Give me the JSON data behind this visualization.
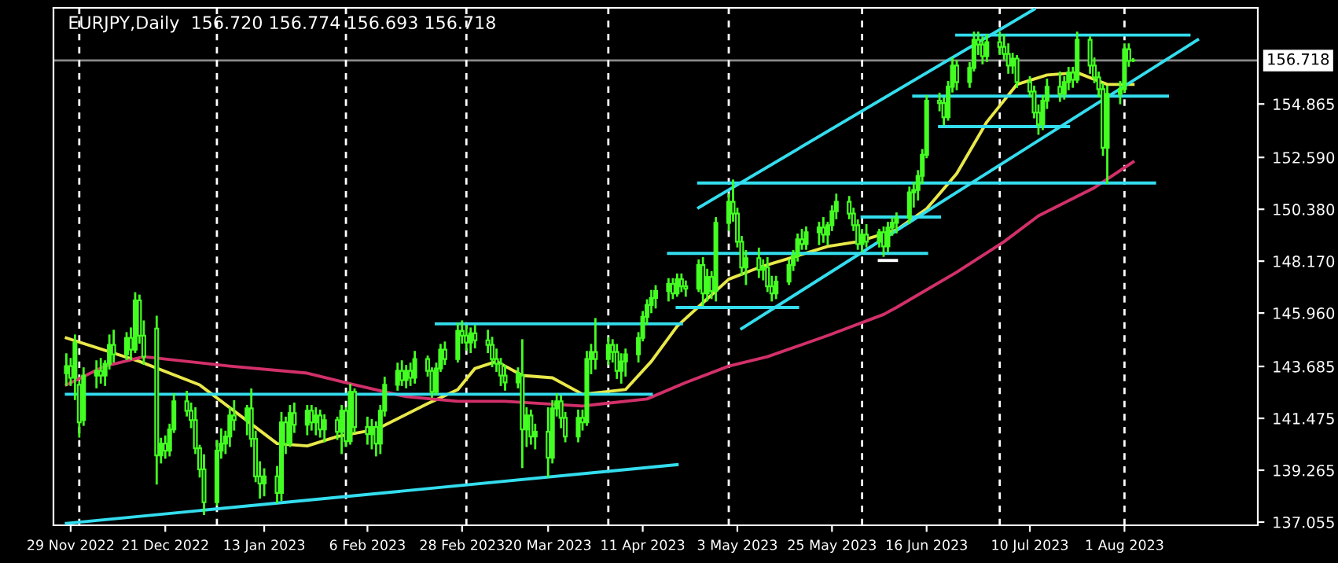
{
  "chart_data": {
    "type": "candlestick",
    "title": "EURJPY,Daily  156.720 156.774 156.693 156.718",
    "color": "#44ff22",
    "x": [
      "2022-11-28",
      "2022-11-29",
      "2022-11-30",
      "2022-12-01",
      "2022-12-02",
      "2022-12-05",
      "2022-12-06",
      "2022-12-07",
      "2022-12-08",
      "2022-12-09",
      "2022-12-12",
      "2022-12-13",
      "2022-12-14",
      "2022-12-15",
      "2022-12-16",
      "2022-12-19",
      "2022-12-20",
      "2022-12-21",
      "2022-12-22",
      "2022-12-23",
      "2022-12-26",
      "2022-12-27",
      "2022-12-28",
      "2022-12-29",
      "2022-12-30",
      "2023-01-02",
      "2023-01-03",
      "2023-01-04",
      "2023-01-05",
      "2023-01-06",
      "2023-01-09",
      "2023-01-10",
      "2023-01-11",
      "2023-01-12",
      "2023-01-13",
      "2023-01-16",
      "2023-01-17",
      "2023-01-18",
      "2023-01-19",
      "2023-01-20",
      "2023-01-23",
      "2023-01-24",
      "2023-01-25",
      "2023-01-26",
      "2023-01-27",
      "2023-01-30",
      "2023-01-31",
      "2023-02-01",
      "2023-02-02",
      "2023-02-03",
      "2023-02-06",
      "2023-02-07",
      "2023-02-08",
      "2023-02-09",
      "2023-02-10",
      "2023-02-13",
      "2023-02-14",
      "2023-02-15",
      "2023-02-16",
      "2023-02-17",
      "2023-02-20",
      "2023-02-21",
      "2023-02-22",
      "2023-02-23",
      "2023-02-24",
      "2023-02-27",
      "2023-02-28",
      "2023-03-01",
      "2023-03-02",
      "2023-03-03",
      "2023-03-06",
      "2023-03-07",
      "2023-03-08",
      "2023-03-09",
      "2023-03-10",
      "2023-03-13",
      "2023-03-14",
      "2023-03-15",
      "2023-03-16",
      "2023-03-17",
      "2023-03-20",
      "2023-03-21",
      "2023-03-22",
      "2023-03-23",
      "2023-03-24",
      "2023-03-27",
      "2023-03-28",
      "2023-03-29",
      "2023-03-30",
      "2023-03-31",
      "2023-04-03",
      "2023-04-04",
      "2023-04-05",
      "2023-04-06",
      "2023-04-07",
      "2023-04-10",
      "2023-04-11",
      "2023-04-12",
      "2023-04-13",
      "2023-04-14",
      "2023-04-17",
      "2023-04-18",
      "2023-04-19",
      "2023-04-20",
      "2023-04-21",
      "2023-04-24",
      "2023-04-25",
      "2023-04-26",
      "2023-04-27",
      "2023-04-28",
      "2023-05-01",
      "2023-05-02",
      "2023-05-03",
      "2023-05-04",
      "2023-05-05",
      "2023-05-08",
      "2023-05-09",
      "2023-05-10",
      "2023-05-11",
      "2023-05-12",
      "2023-05-15",
      "2023-05-16",
      "2023-05-17",
      "2023-05-18",
      "2023-05-19",
      "2023-05-22",
      "2023-05-23",
      "2023-05-24",
      "2023-05-25",
      "2023-05-26",
      "2023-05-29",
      "2023-05-30",
      "2023-05-31",
      "2023-06-01",
      "2023-06-02",
      "2023-06-05",
      "2023-06-06",
      "2023-06-07",
      "2023-06-08",
      "2023-06-09",
      "2023-06-12",
      "2023-06-13",
      "2023-06-14",
      "2023-06-15",
      "2023-06-16",
      "2023-06-19",
      "2023-06-20",
      "2023-06-21",
      "2023-06-22",
      "2023-06-23",
      "2023-06-26",
      "2023-06-27",
      "2023-06-28",
      "2023-06-29",
      "2023-06-30",
      "2023-07-03",
      "2023-07-04",
      "2023-07-05",
      "2023-07-06",
      "2023-07-07",
      "2023-07-10",
      "2023-07-11",
      "2023-07-12",
      "2023-07-13",
      "2023-07-14",
      "2023-07-17",
      "2023-07-18",
      "2023-07-19",
      "2023-07-20",
      "2023-07-21",
      "2023-07-24",
      "2023-07-25",
      "2023-07-26",
      "2023-07-27",
      "2023-07-28",
      "2023-07-31",
      "2023-08-01",
      "2023-08-02",
      "2023-08-03"
    ],
    "ohlc": [
      [
        143.4,
        144.2,
        142.9,
        143.7
      ],
      [
        143.7,
        144.0,
        142.9,
        143.2
      ],
      [
        143.2,
        145.0,
        142.3,
        144.7
      ],
      [
        142.9,
        143.0,
        140.7,
        141.3
      ],
      [
        141.4,
        143.6,
        141.2,
        143.3
      ],
      [
        143.3,
        143.9,
        142.8,
        143.5
      ],
      [
        143.5,
        144.0,
        143.0,
        143.3
      ],
      [
        143.3,
        143.9,
        142.9,
        143.8
      ],
      [
        143.8,
        145.0,
        143.6,
        144.6
      ],
      [
        144.6,
        145.2,
        143.9,
        144.2
      ],
      [
        144.2,
        145.1,
        144.0,
        144.9
      ],
      [
        144.9,
        145.3,
        144.0,
        144.4
      ],
      [
        144.4,
        146.8,
        144.3,
        146.5
      ],
      [
        146.5,
        146.7,
        144.7,
        145.0
      ],
      [
        145.0,
        145.6,
        143.8,
        144.1
      ],
      [
        145.3,
        145.8,
        138.7,
        139.9
      ],
      [
        139.9,
        140.6,
        139.6,
        140.4
      ],
      [
        140.4,
        140.7,
        139.8,
        140.1
      ],
      [
        140.1,
        141.2,
        139.9,
        141.0
      ],
      [
        141.0,
        142.5,
        140.9,
        142.2
      ],
      [
        142.2,
        142.6,
        141.6,
        141.8
      ],
      [
        141.8,
        142.1,
        141.1,
        141.4
      ],
      [
        141.4,
        141.9,
        140.0,
        140.2
      ],
      [
        140.2,
        140.3,
        139.0,
        139.3
      ],
      [
        139.3,
        139.9,
        137.4,
        137.9
      ],
      [
        137.9,
        140.5,
        137.8,
        140.1
      ],
      [
        140.1,
        141.0,
        139.8,
        140.4
      ],
      [
        140.4,
        140.9,
        140.0,
        140.7
      ],
      [
        140.7,
        141.9,
        140.3,
        141.6
      ],
      [
        141.6,
        142.2,
        141.0,
        141.4
      ],
      [
        141.4,
        142.0,
        140.8,
        141.9
      ],
      [
        141.9,
        142.7,
        140.3,
        140.6
      ],
      [
        140.6,
        140.9,
        138.8,
        139.0
      ],
      [
        139.0,
        139.6,
        138.1,
        138.7
      ],
      [
        138.7,
        139.3,
        138.2,
        139.0
      ],
      [
        139.0,
        139.4,
        137.9,
        138.3
      ],
      [
        138.3,
        141.7,
        138.0,
        141.3
      ],
      [
        141.3,
        141.5,
        140.0,
        140.4
      ],
      [
        140.4,
        142.0,
        140.3,
        141.7
      ],
      [
        141.7,
        142.1,
        140.9,
        141.2
      ],
      [
        141.2,
        142.0,
        140.8,
        141.8
      ],
      [
        141.8,
        142.0,
        141.0,
        141.3
      ],
      [
        141.3,
        141.9,
        140.8,
        141.6
      ],
      [
        141.6,
        141.8,
        140.7,
        141.0
      ],
      [
        141.0,
        141.6,
        140.5,
        141.4
      ],
      [
        141.4,
        141.5,
        140.6,
        140.9
      ],
      [
        140.9,
        142.0,
        140.0,
        141.8
      ],
      [
        141.8,
        141.9,
        140.3,
        140.5
      ],
      [
        140.5,
        142.9,
        140.4,
        142.6
      ],
      [
        142.6,
        142.7,
        140.9,
        141.1
      ],
      [
        141.1,
        141.5,
        140.4,
        140.8
      ],
      [
        140.8,
        141.4,
        140.2,
        141.1
      ],
      [
        141.1,
        141.3,
        139.9,
        140.4
      ],
      [
        140.4,
        142.0,
        140.0,
        141.8
      ],
      [
        141.8,
        143.2,
        141.6,
        142.9
      ],
      [
        142.9,
        143.8,
        142.7,
        143.5
      ],
      [
        143.5,
        143.9,
        142.9,
        143.1
      ],
      [
        143.1,
        143.7,
        142.8,
        143.5
      ],
      [
        143.5,
        143.8,
        142.9,
        143.2
      ],
      [
        143.2,
        144.3,
        143.0,
        144.0
      ],
      [
        144.0,
        144.1,
        143.3,
        143.5
      ],
      [
        143.5,
        143.6,
        142.4,
        142.6
      ],
      [
        142.6,
        143.8,
        142.5,
        143.6
      ],
      [
        143.6,
        144.6,
        143.5,
        144.4
      ],
      [
        144.4,
        144.7,
        143.8,
        144.0
      ],
      [
        144.0,
        145.5,
        143.9,
        145.2
      ],
      [
        145.2,
        145.6,
        144.7,
        145.0
      ],
      [
        145.0,
        145.4,
        144.4,
        144.7
      ],
      [
        144.7,
        145.3,
        144.3,
        145.1
      ],
      [
        145.1,
        145.4,
        144.5,
        144.8
      ],
      [
        144.8,
        145.2,
        144.3,
        144.6
      ],
      [
        144.6,
        144.9,
        143.7,
        144.0
      ],
      [
        144.0,
        144.4,
        143.5,
        143.8
      ],
      [
        143.8,
        144.0,
        142.9,
        143.3
      ],
      [
        143.3,
        143.7,
        142.7,
        143.0
      ],
      [
        143.0,
        143.6,
        142.8,
        143.4
      ],
      [
        143.3,
        144.8,
        139.4,
        141.0
      ],
      [
        141.0,
        141.9,
        140.3,
        141.6
      ],
      [
        141.6,
        141.8,
        140.4,
        140.7
      ],
      [
        140.7,
        141.2,
        140.2,
        140.9
      ],
      [
        140.9,
        141.9,
        139.0,
        139.8
      ],
      [
        139.8,
        142.2,
        139.6,
        141.9
      ],
      [
        141.9,
        142.5,
        141.6,
        142.2
      ],
      [
        142.2,
        142.4,
        141.1,
        141.5
      ],
      [
        141.5,
        141.7,
        140.5,
        140.7
      ],
      [
        140.7,
        141.8,
        140.5,
        141.5
      ],
      [
        141.5,
        141.8,
        141.0,
        141.3
      ],
      [
        141.3,
        144.3,
        141.2,
        144.0
      ],
      [
        144.0,
        144.6,
        143.4,
        144.3
      ],
      [
        144.3,
        145.7,
        143.6,
        144.0
      ],
      [
        144.0,
        144.9,
        143.8,
        144.6
      ],
      [
        144.6,
        144.8,
        143.9,
        144.3
      ],
      [
        144.3,
        144.6,
        143.2,
        143.5
      ],
      [
        143.5,
        144.2,
        143.0,
        143.9
      ],
      [
        143.9,
        144.4,
        143.3,
        144.2
      ],
      [
        144.2,
        145.1,
        143.9,
        144.9
      ],
      [
        144.9,
        146.0,
        144.8,
        145.8
      ],
      [
        145.8,
        146.5,
        145.5,
        146.3
      ],
      [
        146.3,
        146.9,
        146.0,
        146.6
      ],
      [
        146.6,
        147.1,
        146.2,
        146.9
      ],
      [
        146.9,
        147.4,
        146.5,
        147.2
      ],
      [
        147.2,
        147.4,
        146.6,
        146.8
      ],
      [
        146.8,
        147.6,
        146.7,
        147.4
      ],
      [
        147.4,
        147.6,
        146.9,
        147.1
      ],
      [
        147.1,
        147.3,
        146.7,
        147.0
      ],
      [
        147.0,
        148.2,
        146.9,
        148.0
      ],
      [
        148.0,
        148.3,
        146.3,
        146.8
      ],
      [
        146.8,
        147.8,
        146.5,
        147.5
      ],
      [
        147.5,
        147.7,
        146.6,
        146.9
      ],
      [
        146.9,
        150.0,
        146.5,
        149.8
      ],
      [
        149.8,
        151.0,
        149.5,
        150.7
      ],
      [
        150.7,
        151.6,
        149.9,
        150.2
      ],
      [
        150.2,
        150.4,
        148.8,
        149.0
      ],
      [
        149.0,
        149.2,
        147.6,
        147.9
      ],
      [
        147.9,
        148.6,
        147.2,
        148.3
      ],
      [
        148.3,
        148.7,
        147.5,
        147.8
      ],
      [
        147.8,
        148.2,
        147.4,
        147.9
      ],
      [
        147.9,
        148.3,
        146.9,
        147.1
      ],
      [
        147.1,
        147.5,
        146.5,
        146.8
      ],
      [
        146.8,
        147.5,
        146.6,
        147.3
      ],
      [
        147.3,
        148.2,
        147.2,
        148.0
      ],
      [
        148.0,
        148.6,
        147.8,
        148.4
      ],
      [
        148.4,
        149.3,
        148.2,
        149.1
      ],
      [
        149.1,
        149.5,
        148.7,
        148.9
      ],
      [
        148.9,
        149.6,
        148.7,
        149.4
      ],
      [
        149.4,
        149.8,
        148.9,
        149.6
      ],
      [
        149.6,
        150.0,
        149.0,
        149.3
      ],
      [
        149.3,
        149.8,
        148.9,
        149.7
      ],
      [
        149.7,
        150.5,
        149.5,
        150.3
      ],
      [
        150.3,
        151.0,
        150.0,
        150.7
      ],
      [
        150.7,
        150.9,
        150.0,
        150.2
      ],
      [
        150.2,
        150.4,
        149.5,
        149.7
      ],
      [
        149.7,
        149.9,
        148.7,
        148.9
      ],
      [
        148.9,
        149.5,
        148.6,
        149.3
      ],
      [
        149.3,
        149.7,
        148.8,
        149.0
      ],
      [
        149.0,
        149.5,
        148.8,
        149.4
      ],
      [
        149.4,
        149.6,
        148.4,
        148.8
      ],
      [
        148.8,
        149.8,
        148.6,
        149.6
      ],
      [
        149.6,
        150.0,
        149.3,
        149.8
      ],
      [
        149.8,
        150.2,
        149.4,
        150.0
      ],
      [
        150.0,
        151.3,
        149.8,
        151.1
      ],
      [
        151.1,
        151.5,
        150.5,
        151.2
      ],
      [
        151.2,
        152.0,
        150.8,
        151.8
      ],
      [
        151.8,
        152.9,
        151.5,
        152.7
      ],
      [
        152.7,
        155.2,
        152.6,
        155.0
      ],
      [
        155.0,
        155.3,
        154.6,
        154.9
      ],
      [
        154.9,
        155.1,
        154.0,
        154.3
      ],
      [
        154.3,
        155.8,
        154.2,
        155.6
      ],
      [
        155.6,
        156.8,
        155.4,
        156.5
      ],
      [
        156.5,
        156.7,
        155.5,
        155.8
      ],
      [
        155.8,
        156.6,
        155.6,
        156.4
      ],
      [
        156.4,
        157.9,
        156.3,
        157.6
      ],
      [
        157.6,
        157.9,
        157.0,
        157.4
      ],
      [
        157.4,
        157.7,
        156.6,
        156.9
      ],
      [
        156.9,
        157.8,
        156.7,
        157.5
      ],
      [
        157.5,
        157.9,
        157.0,
        157.3
      ],
      [
        157.3,
        157.8,
        156.8,
        157.0
      ],
      [
        157.0,
        157.4,
        156.2,
        156.5
      ],
      [
        156.5,
        157.0,
        156.2,
        156.8
      ],
      [
        156.8,
        156.9,
        155.6,
        155.8
      ],
      [
        155.8,
        156.0,
        155.2,
        155.4
      ],
      [
        155.4,
        155.6,
        154.3,
        154.5
      ],
      [
        154.5,
        154.8,
        153.6,
        154.0
      ],
      [
        154.0,
        155.2,
        153.8,
        155.0
      ],
      [
        155.0,
        155.9,
        154.7,
        155.6
      ],
      [
        155.6,
        156.2,
        155.0,
        155.3
      ],
      [
        155.3,
        156.0,
        155.1,
        155.8
      ],
      [
        155.8,
        156.4,
        155.5,
        156.2
      ],
      [
        156.2,
        156.4,
        155.6,
        155.9
      ],
      [
        155.9,
        157.9,
        155.8,
        157.6
      ],
      [
        157.6,
        157.7,
        156.2,
        156.5
      ],
      [
        156.5,
        156.8,
        155.8,
        156.0
      ],
      [
        156.0,
        156.2,
        155.2,
        155.5
      ],
      [
        155.5,
        155.7,
        152.7,
        153.0
      ],
      [
        153.0,
        155.6,
        151.5,
        155.3
      ],
      [
        155.3,
        155.8,
        154.9,
        155.5
      ],
      [
        155.5,
        157.4,
        155.4,
        157.2
      ],
      [
        157.2,
        157.4,
        156.5,
        156.7
      ],
      [
        156.72,
        156.774,
        156.693,
        156.718
      ]
    ],
    "series": [
      {
        "type": "line",
        "color": "#e8e84a",
        "x": [
          "2022-11-28",
          "2022-12-15",
          "2022-12-29",
          "2023-01-16",
          "2023-01-23",
          "2023-01-30",
          "2023-02-08",
          "2023-02-20",
          "2023-02-27",
          "2023-03-03",
          "2023-03-08",
          "2023-03-14",
          "2023-03-21",
          "2023-03-28",
          "2023-04-07",
          "2023-04-13",
          "2023-04-19",
          "2023-04-25",
          "2023-05-01",
          "2023-05-08",
          "2023-05-17",
          "2023-05-24",
          "2023-05-31",
          "2023-06-09",
          "2023-06-16",
          "2023-06-23",
          "2023-06-30",
          "2023-07-07",
          "2023-07-14",
          "2023-07-21",
          "2023-07-28",
          "2023-08-03"
        ],
        "values": [
          144.9,
          143.9,
          142.9,
          140.4,
          140.3,
          140.7,
          141.0,
          142.1,
          142.7,
          143.6,
          143.9,
          143.3,
          143.2,
          142.5,
          142.7,
          143.9,
          145.4,
          146.4,
          147.4,
          147.9,
          148.4,
          148.8,
          149.0,
          149.5,
          150.4,
          151.9,
          154.1,
          155.7,
          156.1,
          156.2,
          155.7,
          155.7
        ]
      },
      {
        "type": "line",
        "color": "#d2306a",
        "x": [
          "2022-11-28",
          "2022-12-07",
          "2022-12-16",
          "2023-01-05",
          "2023-01-23",
          "2023-02-03",
          "2023-02-15",
          "2023-02-27",
          "2023-03-10",
          "2023-03-28",
          "2023-04-12",
          "2023-04-21",
          "2023-05-01",
          "2023-05-10",
          "2023-05-24",
          "2023-06-06",
          "2023-06-09",
          "2023-06-23",
          "2023-07-04",
          "2023-07-12",
          "2023-07-25",
          "2023-08-03"
        ],
        "values": [
          142.9,
          143.7,
          144.1,
          143.7,
          143.4,
          142.9,
          142.4,
          142.2,
          142.2,
          142.0,
          142.3,
          143.0,
          143.7,
          144.1,
          145.0,
          145.9,
          146.2,
          147.7,
          149.0,
          150.1,
          151.3,
          152.4
        ]
      },
      {
        "type": "line",
        "color": "#33ddee",
        "x": [
          "2022-11-28",
          "2023-04-13"
        ],
        "values": [
          142.5,
          142.5
        ]
      },
      {
        "type": "line",
        "color": "#33ddee",
        "x": [
          "2023-02-22",
          "2023-04-20"
        ],
        "values": [
          145.5,
          145.5
        ]
      },
      {
        "type": "line",
        "color": "#33ddee",
        "x": [
          "2022-11-28",
          "2023-04-19"
        ],
        "values": [
          137.0,
          139.5
        ]
      },
      {
        "type": "line",
        "color": "#33ddee",
        "x": [
          "2023-04-19",
          "2023-05-17"
        ],
        "values": [
          146.2,
          146.2
        ]
      },
      {
        "type": "line",
        "color": "#33ddee",
        "x": [
          "2023-04-17",
          "2023-06-16"
        ],
        "values": [
          148.5,
          148.5
        ]
      },
      {
        "type": "line",
        "color": "#33ddee",
        "x": [
          "2023-04-24",
          "2023-08-08"
        ],
        "values": [
          151.5,
          151.5
        ]
      },
      {
        "type": "line",
        "color": "#33ddee",
        "x": [
          "2023-06-01",
          "2023-06-19"
        ],
        "values": [
          150.05,
          150.05
        ]
      },
      {
        "type": "line",
        "color": "#ffffff",
        "x": [
          "2023-06-05",
          "2023-06-09"
        ],
        "values": [
          148.2,
          148.2
        ]
      },
      {
        "type": "line",
        "color": "#33ddee",
        "x": [
          "2023-06-19",
          "2023-07-19"
        ],
        "values": [
          153.9,
          153.9
        ]
      },
      {
        "type": "line",
        "color": "#33ddee",
        "x": [
          "2023-06-13",
          "2023-08-11"
        ],
        "values": [
          155.2,
          155.2
        ]
      },
      {
        "type": "line",
        "color": "#33ddee",
        "x": [
          "2023-06-23",
          "2023-08-16"
        ],
        "values": [
          157.8,
          157.8
        ]
      },
      {
        "type": "line",
        "color": "#33ddee",
        "x": [
          "2023-04-24",
          "2023-07-11"
        ],
        "values": [
          150.45,
          158.9
        ]
      },
      {
        "type": "line",
        "color": "#33ddee",
        "x": [
          "2023-05-04",
          "2023-08-18"
        ],
        "values": [
          145.3,
          157.6
        ]
      }
    ],
    "ref_lines": [
      {
        "axis": "y",
        "value": 156.718,
        "label": "156.718",
        "color": "#8a8a8a",
        "line_style": "solid"
      },
      {
        "axis": "x",
        "value": "2022-12-01",
        "color": "#ffffff",
        "line_style": "dashed"
      },
      {
        "axis": "x",
        "value": "2023-01-02",
        "color": "#ffffff",
        "line_style": "dashed"
      },
      {
        "axis": "x",
        "value": "2023-02-01",
        "color": "#ffffff",
        "line_style": "dashed"
      },
      {
        "axis": "x",
        "value": "2023-03-01",
        "color": "#ffffff",
        "line_style": "dashed"
      },
      {
        "axis": "x",
        "value": "2023-04-03",
        "color": "#ffffff",
        "line_style": "dashed"
      },
      {
        "axis": "x",
        "value": "2023-05-01",
        "color": "#ffffff",
        "line_style": "dashed"
      },
      {
        "axis": "x",
        "value": "2023-06-01",
        "color": "#ffffff",
        "line_style": "dashed"
      },
      {
        "axis": "x",
        "value": "2023-07-03",
        "color": "#ffffff",
        "line_style": "dashed"
      },
      {
        "axis": "x",
        "value": "2023-08-01",
        "color": "#ffffff",
        "line_style": "dashed"
      }
    ],
    "xlim": [
      "2022-11-25",
      "2023-09-01"
    ],
    "xticks": [
      {
        "value": "2022-11-29",
        "label": "29 Nov 2022"
      },
      {
        "value": "2022-12-21",
        "label": "21 Dec 2022"
      },
      {
        "value": "2023-01-13",
        "label": "13 Jan 2023"
      },
      {
        "value": "2023-02-06",
        "label": "6 Feb 2023"
      },
      {
        "value": "2023-02-28",
        "label": "28 Feb 2023"
      },
      {
        "value": "2023-03-20",
        "label": "20 Mar 2023"
      },
      {
        "value": "2023-04-11",
        "label": "11 Apr 2023"
      },
      {
        "value": "2023-05-03",
        "label": "3 May 2023"
      },
      {
        "value": "2023-05-25",
        "label": "25 May 2023"
      },
      {
        "value": "2023-06-16",
        "label": "16 Jun 2023"
      },
      {
        "value": "2023-07-10",
        "label": "10 Jul 2023"
      },
      {
        "value": "2023-08-01",
        "label": "1 Aug 2023"
      }
    ],
    "ylim": [
      136.92,
      158.96
    ],
    "yticks": [
      {
        "value": 137.055,
        "label": "137.055"
      },
      {
        "value": 139.265,
        "label": "139.265"
      },
      {
        "value": 141.475,
        "label": "141.475"
      },
      {
        "value": 143.685,
        "label": "143.685"
      },
      {
        "value": 145.96,
        "label": "145.960"
      },
      {
        "value": 148.17,
        "label": "148.170"
      },
      {
        "value": 150.38,
        "label": "150.380"
      },
      {
        "value": 152.59,
        "label": "152.590"
      },
      {
        "value": 154.865,
        "label": "154.865"
      }
    ],
    "grid": false
  }
}
